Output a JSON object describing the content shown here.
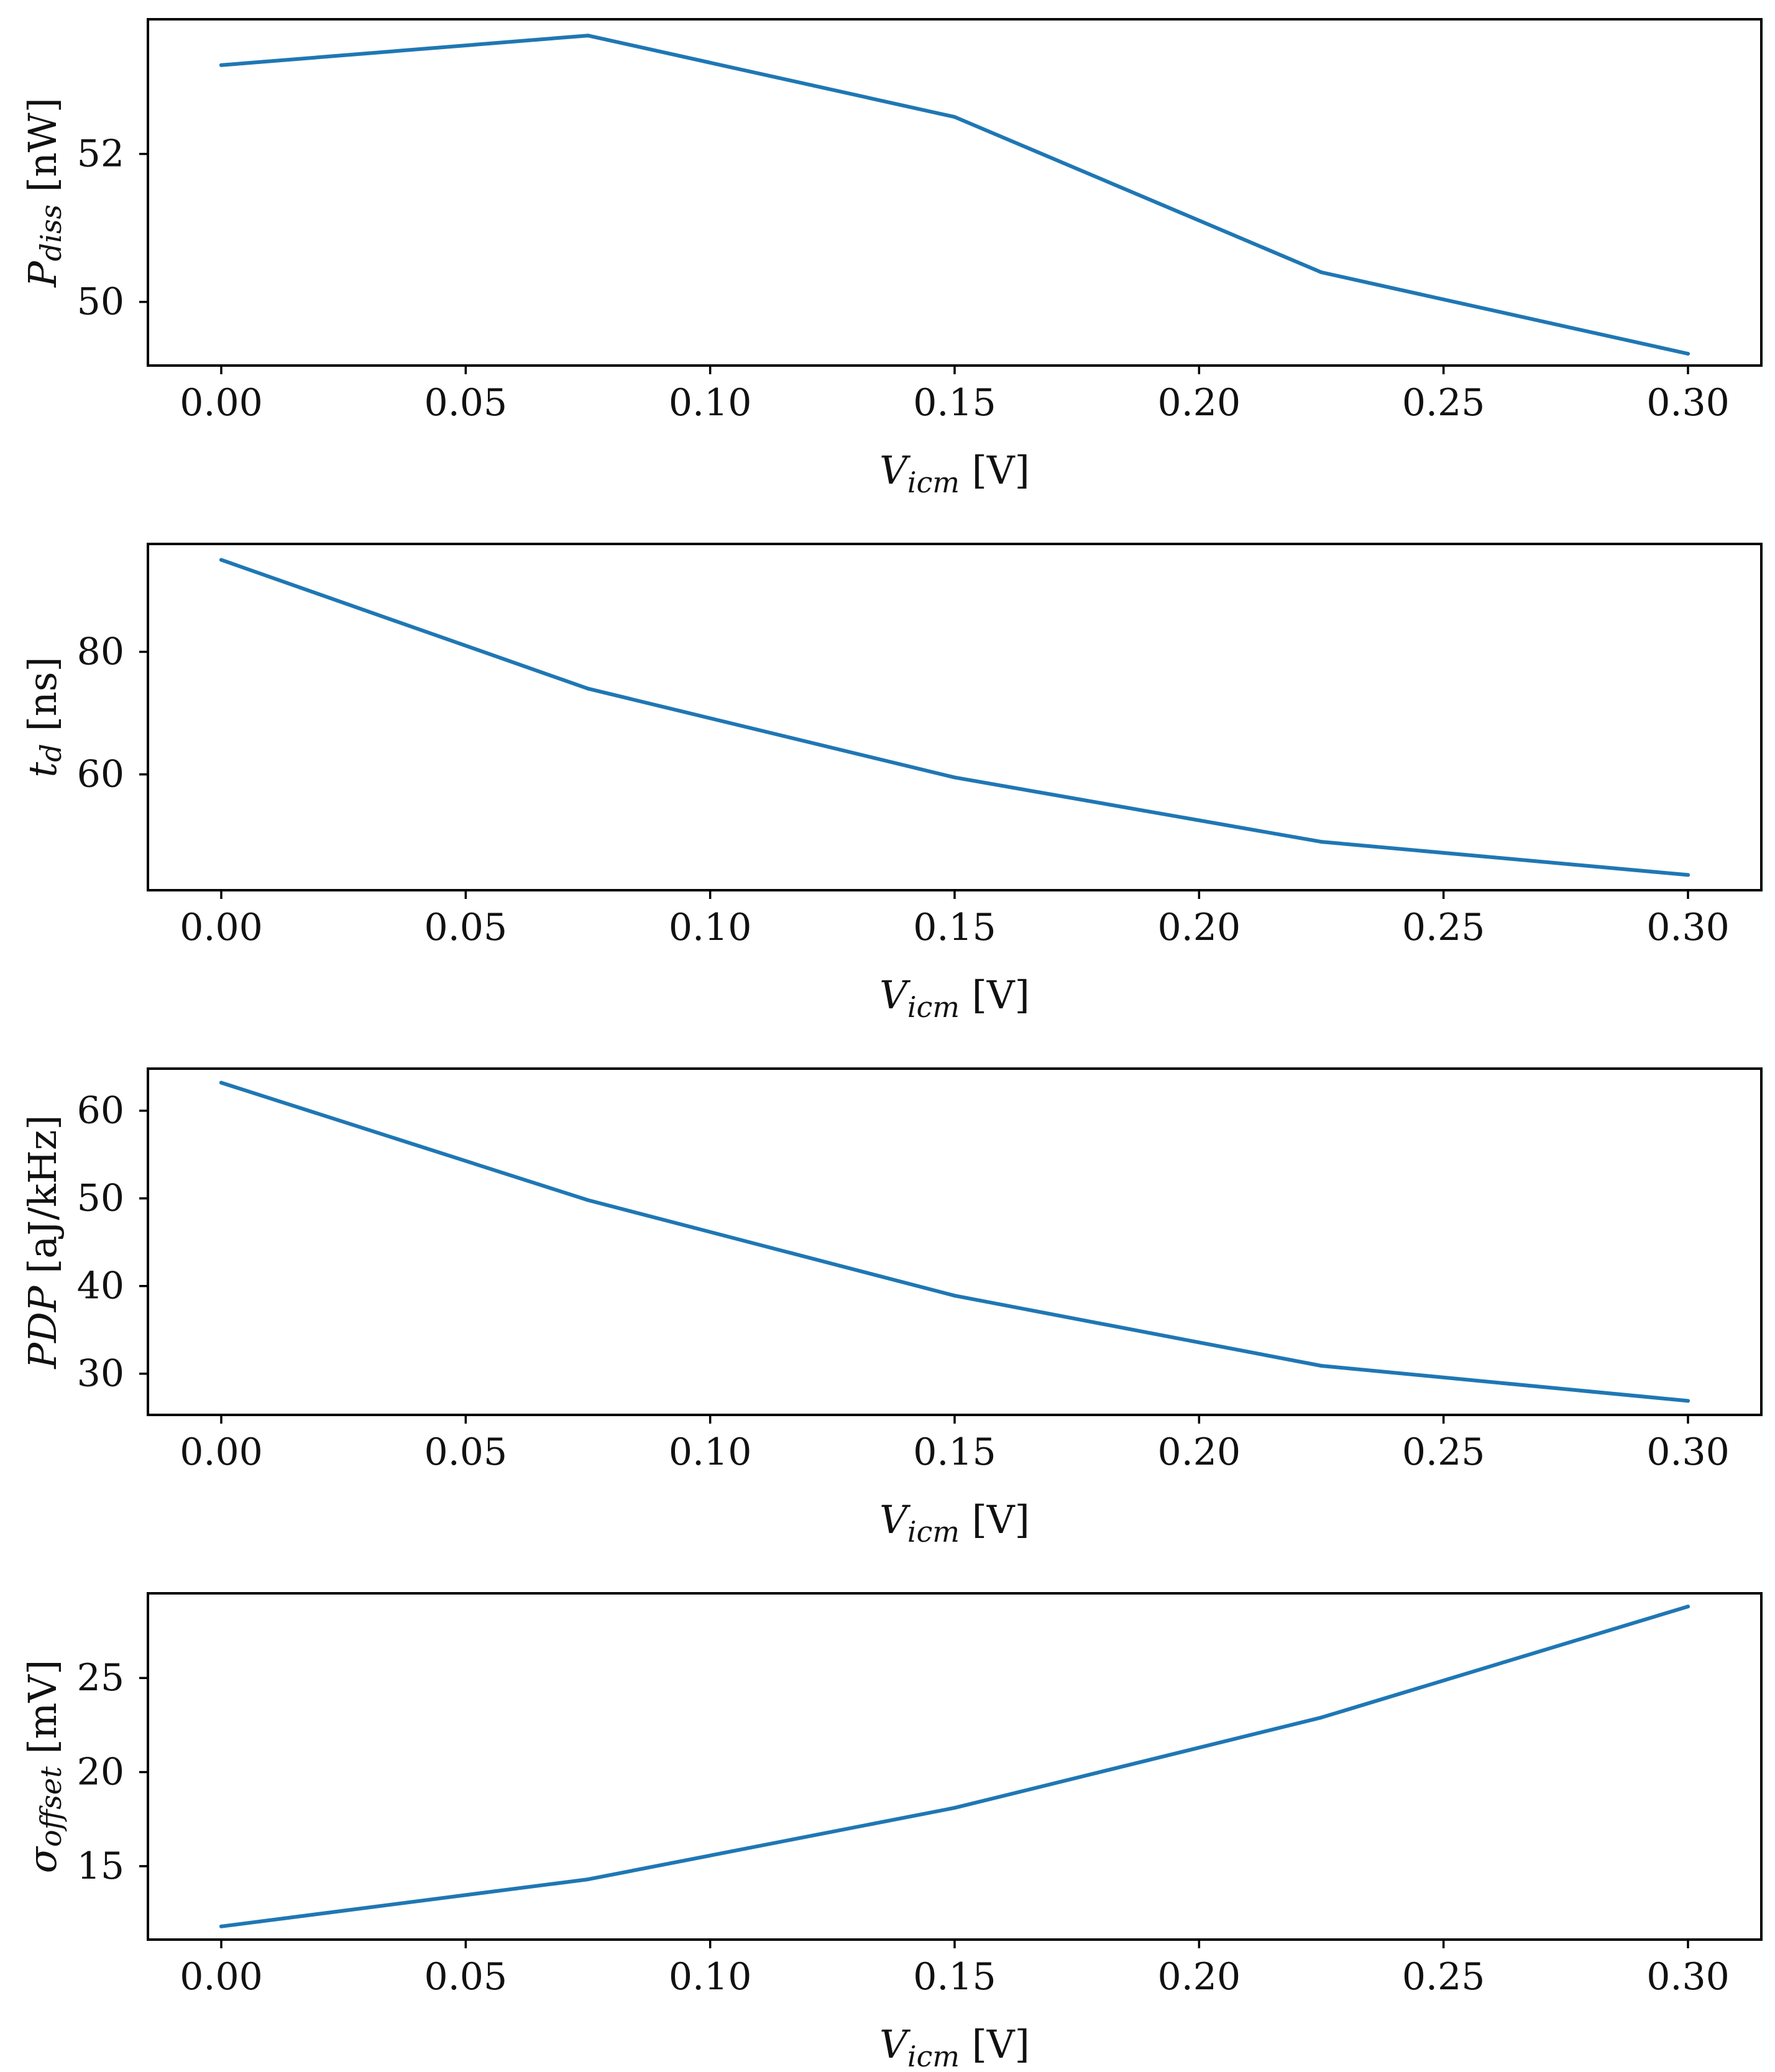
{
  "colors": {
    "series": "#1f77b4",
    "axes": "#000000"
  },
  "chart_data": [
    {
      "type": "line",
      "x": [
        0.0,
        0.075,
        0.15,
        0.225,
        0.3
      ],
      "series": [
        {
          "name": "P_diss",
          "values": [
            53.2,
            53.6,
            52.5,
            50.4,
            49.3
          ]
        }
      ],
      "xlabel": {
        "symbol": "V",
        "sub": "icm",
        "unit": " [V]"
      },
      "ylabel": {
        "symbol": "P",
        "sub": "diss",
        "unit": " [nW]"
      },
      "xticks": [
        0.0,
        0.05,
        0.1,
        0.15,
        0.2,
        0.25,
        0.3
      ],
      "xtick_labels": [
        "0.00",
        "0.05",
        "0.10",
        "0.15",
        "0.20",
        "0.25",
        "0.30"
      ],
      "yticks": [
        50,
        52
      ],
      "ytick_labels": [
        "50",
        "52"
      ],
      "xlim": [
        -0.015,
        0.315
      ],
      "ylim": [
        49.14,
        53.82
      ],
      "grid": false
    },
    {
      "type": "line",
      "x": [
        0.0,
        0.075,
        0.15,
        0.225,
        0.3
      ],
      "series": [
        {
          "name": "t_d",
          "values": [
            95,
            74,
            59.5,
            49,
            43.6
          ]
        }
      ],
      "xlabel": {
        "symbol": "V",
        "sub": "icm",
        "unit": " [V]"
      },
      "ylabel": {
        "symbol": "t",
        "sub": "d",
        "unit": " [ns]"
      },
      "xticks": [
        0.0,
        0.05,
        0.1,
        0.15,
        0.2,
        0.25,
        0.3
      ],
      "xtick_labels": [
        "0.00",
        "0.05",
        "0.10",
        "0.15",
        "0.20",
        "0.25",
        "0.30"
      ],
      "yticks": [
        60,
        80
      ],
      "ytick_labels": [
        "60",
        "80"
      ],
      "xlim": [
        -0.015,
        0.315
      ],
      "ylim": [
        41.1,
        97.6
      ],
      "grid": false
    },
    {
      "type": "line",
      "x": [
        0.0,
        0.075,
        0.15,
        0.225,
        0.3
      ],
      "series": [
        {
          "name": "PDP",
          "values": [
            63.2,
            49.8,
            38.9,
            30.9,
            26.9
          ]
        }
      ],
      "xlabel": {
        "symbol": "V",
        "sub": "icm",
        "unit": " [V]"
      },
      "ylabel": {
        "symbol": "PDP",
        "sub": "",
        "unit": " [aJ/kHz]"
      },
      "xticks": [
        0.0,
        0.05,
        0.1,
        0.15,
        0.2,
        0.25,
        0.3
      ],
      "xtick_labels": [
        "0.00",
        "0.05",
        "0.10",
        "0.15",
        "0.20",
        "0.25",
        "0.30"
      ],
      "yticks": [
        30,
        40,
        50,
        60
      ],
      "ytick_labels": [
        "30",
        "40",
        "50",
        "60"
      ],
      "xlim": [
        -0.015,
        0.315
      ],
      "ylim": [
        25.3,
        64.8
      ],
      "grid": false
    },
    {
      "type": "line",
      "x": [
        0.0,
        0.075,
        0.15,
        0.225,
        0.3
      ],
      "series": [
        {
          "name": "sigma_offset",
          "values": [
            11.8,
            14.3,
            18.1,
            22.9,
            28.8
          ]
        }
      ],
      "xlabel": {
        "symbol": "V",
        "sub": "icm",
        "unit": " [V]"
      },
      "ylabel": {
        "symbol": "σ",
        "sub": "offset",
        "unit": " [mV]"
      },
      "xticks": [
        0.0,
        0.05,
        0.1,
        0.15,
        0.2,
        0.25,
        0.3
      ],
      "xtick_labels": [
        "0.00",
        "0.05",
        "0.10",
        "0.15",
        "0.20",
        "0.25",
        "0.30"
      ],
      "yticks": [
        15,
        20,
        25
      ],
      "ytick_labels": [
        "15",
        "20",
        "25"
      ],
      "xlim": [
        -0.015,
        0.315
      ],
      "ylim": [
        11.1,
        29.5
      ],
      "grid": false
    }
  ]
}
